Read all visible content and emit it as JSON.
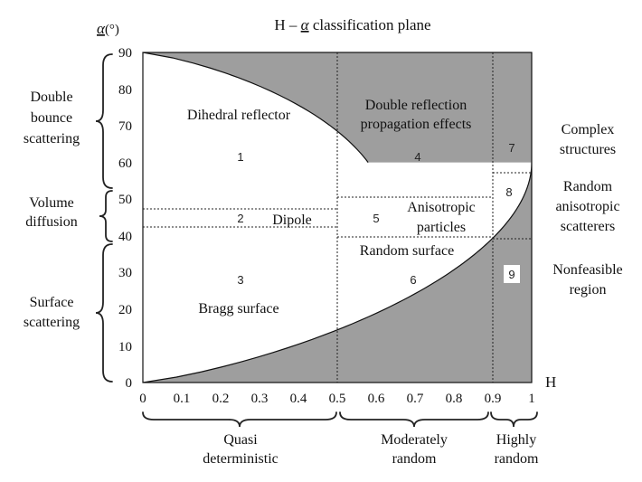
{
  "title_prefix": "H – ",
  "title_alpha": "α",
  "title_suffix": " classification plane",
  "y_axis_label_alpha": "α",
  "y_axis_label_unit": "(°)",
  "x_axis_label": "H",
  "x_ticks": [
    "0",
    "0.1",
    "0.2",
    "0.3",
    "0.4",
    "0.5",
    "0.6",
    "0.7",
    "0.8",
    "0.9",
    "1"
  ],
  "y_ticks": [
    "0",
    "10",
    "20",
    "30",
    "40",
    "50",
    "60",
    "70",
    "80",
    "90"
  ],
  "zones": [
    {
      "number": "1",
      "label_lines": [
        "Dihedral reflector"
      ]
    },
    {
      "number": "2",
      "label_lines": [
        "Dipole"
      ]
    },
    {
      "number": "3",
      "label_lines": [
        "Bragg surface"
      ]
    },
    {
      "number": "4",
      "label_lines": [
        "Double reflection",
        "propagation effects"
      ]
    },
    {
      "number": "5",
      "label_lines": [
        "Anisotropic",
        "particles"
      ]
    },
    {
      "number": "6",
      "label_lines": [
        "Random surface"
      ]
    },
    {
      "number": "7",
      "label_lines": []
    },
    {
      "number": "8",
      "label_lines": []
    },
    {
      "number": "9",
      "label_lines": []
    }
  ],
  "left_labels": [
    {
      "lines": [
        "Double",
        "bounce",
        "scattering"
      ]
    },
    {
      "lines": [
        "Volume",
        "diffusion"
      ]
    },
    {
      "lines": [
        "Surface",
        "scattering"
      ]
    }
  ],
  "right_labels": [
    {
      "lines": [
        "Complex",
        "structures"
      ]
    },
    {
      "lines": [
        "Random",
        "anisotropic",
        "scatterers"
      ]
    },
    {
      "lines": [
        "Nonfeasible",
        "region"
      ]
    }
  ],
  "bottom_labels": [
    {
      "lines": [
        "Quasi",
        "deterministic"
      ]
    },
    {
      "lines": [
        "Moderately",
        "random"
      ]
    },
    {
      "lines": [
        "Highly",
        "random"
      ]
    }
  ],
  "colors": {
    "nonfeasible_fill": "#9e9e9e",
    "line": "#111111",
    "background": "#ffffff"
  }
}
